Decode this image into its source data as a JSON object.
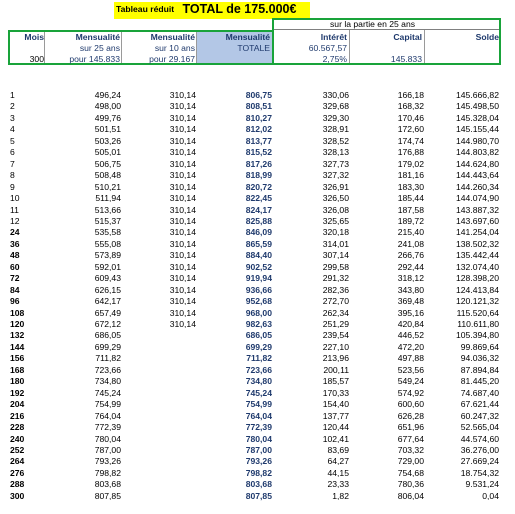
{
  "title": {
    "label": "Tableau réduit",
    "total": "TOTAL de 175.000€"
  },
  "header": {
    "partie": "sur la partie en 25 ans",
    "mois": "Mois",
    "mois_value": "300",
    "mens25_title": "Mensualité",
    "mens25_sub": "sur 25 ans",
    "mens25_base": "pour 145.833",
    "mens10_title": "Mensualité",
    "mens10_sub": "sur 10 ans",
    "mens10_base": "pour 29.167",
    "total_title": "Mensualité",
    "total_sub": "TOTALE",
    "interet_title": "Intérêt",
    "interet_total": "60.567,57",
    "interet_rate": "2,75%",
    "capital_title": "Capital",
    "capital_total": "145.833",
    "solde_title": "Solde"
  },
  "rows": [
    {
      "mois": "1",
      "bold": false,
      "m25": "496,24",
      "m10": "310,14",
      "tot": "806,75",
      "int": "330,06",
      "cap": "166,18",
      "sol": "145.666,82"
    },
    {
      "mois": "2",
      "bold": false,
      "m25": "498,00",
      "m10": "310,14",
      "tot": "808,51",
      "int": "329,68",
      "cap": "168,32",
      "sol": "145.498,50"
    },
    {
      "mois": "3",
      "bold": false,
      "m25": "499,76",
      "m10": "310,14",
      "tot": "810,27",
      "int": "329,30",
      "cap": "170,46",
      "sol": "145.328,04"
    },
    {
      "mois": "4",
      "bold": false,
      "m25": "501,51",
      "m10": "310,14",
      "tot": "812,02",
      "int": "328,91",
      "cap": "172,60",
      "sol": "145.155,44"
    },
    {
      "mois": "5",
      "bold": false,
      "m25": "503,26",
      "m10": "310,14",
      "tot": "813,77",
      "int": "328,52",
      "cap": "174,74",
      "sol": "144.980,70"
    },
    {
      "mois": "6",
      "bold": false,
      "m25": "505,01",
      "m10": "310,14",
      "tot": "815,52",
      "int": "328,13",
      "cap": "176,88",
      "sol": "144.803,82"
    },
    {
      "mois": "7",
      "bold": false,
      "m25": "506,75",
      "m10": "310,14",
      "tot": "817,26",
      "int": "327,73",
      "cap": "179,02",
      "sol": "144.624,80"
    },
    {
      "mois": "8",
      "bold": false,
      "m25": "508,48",
      "m10": "310,14",
      "tot": "818,99",
      "int": "327,32",
      "cap": "181,16",
      "sol": "144.443,64"
    },
    {
      "mois": "9",
      "bold": false,
      "m25": "510,21",
      "m10": "310,14",
      "tot": "820,72",
      "int": "326,91",
      "cap": "183,30",
      "sol": "144.260,34"
    },
    {
      "mois": "10",
      "bold": false,
      "m25": "511,94",
      "m10": "310,14",
      "tot": "822,45",
      "int": "326,50",
      "cap": "185,44",
      "sol": "144.074,90"
    },
    {
      "mois": "11",
      "bold": false,
      "m25": "513,66",
      "m10": "310,14",
      "tot": "824,17",
      "int": "326,08",
      "cap": "187,58",
      "sol": "143.887,32"
    },
    {
      "mois": "12",
      "bold": false,
      "m25": "515,37",
      "m10": "310,14",
      "tot": "825,88",
      "int": "325,65",
      "cap": "189,72",
      "sol": "143.697,60"
    },
    {
      "mois": "24",
      "bold": true,
      "m25": "535,58",
      "m10": "310,14",
      "tot": "846,09",
      "int": "320,18",
      "cap": "215,40",
      "sol": "141.254,04"
    },
    {
      "mois": "36",
      "bold": true,
      "m25": "555,08",
      "m10": "310,14",
      "tot": "865,59",
      "int": "314,01",
      "cap": "241,08",
      "sol": "138.502,32"
    },
    {
      "mois": "48",
      "bold": true,
      "m25": "573,89",
      "m10": "310,14",
      "tot": "884,40",
      "int": "307,14",
      "cap": "266,76",
      "sol": "135.442,44"
    },
    {
      "mois": "60",
      "bold": true,
      "m25": "592,01",
      "m10": "310,14",
      "tot": "902,52",
      "int": "299,58",
      "cap": "292,44",
      "sol": "132.074,40"
    },
    {
      "mois": "72",
      "bold": true,
      "m25": "609,43",
      "m10": "310,14",
      "tot": "919,94",
      "int": "291,32",
      "cap": "318,12",
      "sol": "128.398,20"
    },
    {
      "mois": "84",
      "bold": true,
      "m25": "626,15",
      "m10": "310,14",
      "tot": "936,66",
      "int": "282,36",
      "cap": "343,80",
      "sol": "124.413,84"
    },
    {
      "mois": "96",
      "bold": true,
      "m25": "642,17",
      "m10": "310,14",
      "tot": "952,68",
      "int": "272,70",
      "cap": "369,48",
      "sol": "120.121,32"
    },
    {
      "mois": "108",
      "bold": true,
      "m25": "657,49",
      "m10": "310,14",
      "tot": "968,00",
      "int": "262,34",
      "cap": "395,16",
      "sol": "115.520,64"
    },
    {
      "mois": "120",
      "bold": true,
      "m25": "672,12",
      "m10": "310,14",
      "tot": "982,63",
      "int": "251,29",
      "cap": "420,84",
      "sol": "110.611,80"
    },
    {
      "mois": "132",
      "bold": true,
      "m25": "686,05",
      "m10": "",
      "tot": "686,05",
      "int": "239,54",
      "cap": "446,52",
      "sol": "105.394,80"
    },
    {
      "mois": "144",
      "bold": true,
      "m25": "699,29",
      "m10": "",
      "tot": "699,29",
      "int": "227,10",
      "cap": "472,20",
      "sol": "99.869,64"
    },
    {
      "mois": "156",
      "bold": true,
      "m25": "711,82",
      "m10": "",
      "tot": "711,82",
      "int": "213,96",
      "cap": "497,88",
      "sol": "94.036,32"
    },
    {
      "mois": "168",
      "bold": true,
      "m25": "723,66",
      "m10": "",
      "tot": "723,66",
      "int": "200,11",
      "cap": "523,56",
      "sol": "87.894,84"
    },
    {
      "mois": "180",
      "bold": true,
      "m25": "734,80",
      "m10": "",
      "tot": "734,80",
      "int": "185,57",
      "cap": "549,24",
      "sol": "81.445,20"
    },
    {
      "mois": "192",
      "bold": true,
      "m25": "745,24",
      "m10": "",
      "tot": "745,24",
      "int": "170,33",
      "cap": "574,92",
      "sol": "74.687,40"
    },
    {
      "mois": "204",
      "bold": true,
      "m25": "754,99",
      "m10": "",
      "tot": "754,99",
      "int": "154,40",
      "cap": "600,60",
      "sol": "67.621,44"
    },
    {
      "mois": "216",
      "bold": true,
      "m25": "764,04",
      "m10": "",
      "tot": "764,04",
      "int": "137,77",
      "cap": "626,28",
      "sol": "60.247,32"
    },
    {
      "mois": "228",
      "bold": true,
      "m25": "772,39",
      "m10": "",
      "tot": "772,39",
      "int": "120,44",
      "cap": "651,96",
      "sol": "52.565,04"
    },
    {
      "mois": "240",
      "bold": true,
      "m25": "780,04",
      "m10": "",
      "tot": "780,04",
      "int": "102,41",
      "cap": "677,64",
      "sol": "44.574,60"
    },
    {
      "mois": "252",
      "bold": true,
      "m25": "787,00",
      "m10": "",
      "tot": "787,00",
      "int": "83,69",
      "cap": "703,32",
      "sol": "36.276,00"
    },
    {
      "mois": "264",
      "bold": true,
      "m25": "793,26",
      "m10": "",
      "tot": "793,26",
      "int": "64,27",
      "cap": "729,00",
      "sol": "27.669,24"
    },
    {
      "mois": "276",
      "bold": true,
      "m25": "798,82",
      "m10": "",
      "tot": "798,82",
      "int": "44,15",
      "cap": "754,68",
      "sol": "18.754,32"
    },
    {
      "mois": "288",
      "bold": true,
      "m25": "803,68",
      "m10": "",
      "tot": "803,68",
      "int": "23,33",
      "cap": "780,36",
      "sol": "9.531,24"
    },
    {
      "mois": "300",
      "bold": true,
      "m25": "807,85",
      "m10": "",
      "tot": "807,85",
      "int": "1,82",
      "cap": "806,04",
      "sol": "0,04"
    }
  ],
  "colors": {
    "yellow": "#ffff00",
    "green_border": "#19a33a",
    "total_fill": "#b3c7e6",
    "header_text": "#1f3a6d",
    "total_text": "#1f3a6d"
  }
}
